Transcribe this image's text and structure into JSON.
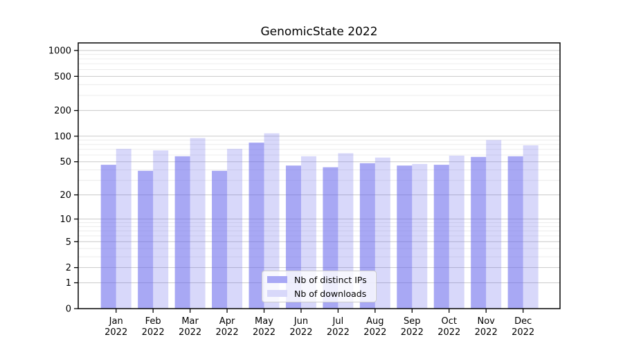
{
  "title": "GenomicState 2022",
  "chart_data": {
    "type": "bar",
    "title": "GenomicState 2022",
    "categories": [
      "Jan",
      "Feb",
      "Mar",
      "Apr",
      "May",
      "Jun",
      "Jul",
      "Aug",
      "Sep",
      "Oct",
      "Nov",
      "Dec"
    ],
    "category_year": "2022",
    "series": [
      {
        "name": "Nb of distinct IPs",
        "color": "rgba(100,100,236,0.56)",
        "color_solid": "#a8a8f5",
        "values": [
          46,
          39,
          58,
          39,
          84,
          45,
          43,
          48,
          45,
          46,
          57,
          58
        ]
      },
      {
        "name": "Nb of downloads",
        "color": "rgba(100,100,236,0.25)",
        "color_solid": "#d8d8fa",
        "values": [
          71,
          68,
          95,
          71,
          108,
          58,
          63,
          56,
          47,
          59,
          90,
          78
        ]
      }
    ],
    "yscale": "log1p",
    "ylim": [
      0,
      1225
    ],
    "ytick_values": [
      0,
      1,
      2,
      5,
      10,
      20,
      50,
      100,
      200,
      500,
      1000
    ],
    "ytick_labels": [
      "0",
      "1",
      "2",
      "5",
      "10",
      "20",
      "50",
      "100",
      "200",
      "500",
      "1000"
    ],
    "yminor_values": [
      3,
      4,
      6,
      7,
      8,
      9,
      30,
      40,
      60,
      70,
      80,
      90,
      300,
      400,
      600,
      700,
      800,
      900
    ],
    "grid": true,
    "legend_position": "lower center",
    "colors": {
      "major_grid": "#c9c9c9",
      "minor_grid": "#ececec",
      "spine": "#000000",
      "text": "#000000"
    }
  },
  "legend": {
    "items": [
      {
        "label": "Nb of distinct IPs"
      },
      {
        "label": "Nb of downloads"
      }
    ]
  }
}
